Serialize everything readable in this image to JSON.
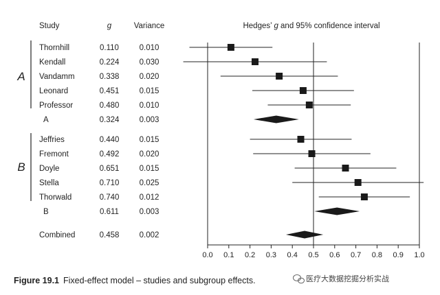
{
  "chart_data": {
    "type": "forest",
    "columns": {
      "study": "Study",
      "g": "g",
      "variance": "Variance"
    },
    "plot_title_prefix": "Hedges’ ",
    "plot_title_italic": "g",
    "plot_title_suffix": " and 95% confidence interval",
    "xlim": [
      0.0,
      1.0
    ],
    "x_ticks": [
      "0.0",
      "0.1",
      "0.2",
      "0.3",
      "0.4",
      "0.5",
      "0.6",
      "0.7",
      "0.8",
      "0.9",
      "1.0"
    ],
    "reference_lines": [
      0.0,
      0.5,
      1.0
    ],
    "groups": [
      {
        "label": "A",
        "studies": [
          {
            "name": "Thornhill",
            "g": "0.110",
            "variance": "0.010",
            "g_value": 0.11,
            "ci": [
              -0.086,
              0.306
            ]
          },
          {
            "name": "Kendall",
            "g": "0.224",
            "variance": "0.030",
            "g_value": 0.224,
            "ci": [
              -0.115,
              0.563
            ]
          },
          {
            "name": "Vandamm",
            "g": "0.338",
            "variance": "0.020",
            "g_value": 0.338,
            "ci": [
              0.061,
              0.615
            ]
          },
          {
            "name": "Leonard",
            "g": "0.451",
            "variance": "0.015",
            "g_value": 0.451,
            "ci": [
              0.211,
              0.691
            ]
          },
          {
            "name": "Professor",
            "g": "0.480",
            "variance": "0.010",
            "g_value": 0.48,
            "ci": [
              0.284,
              0.676
            ]
          }
        ],
        "summary": {
          "name": "A",
          "g": "0.324",
          "variance": "0.003",
          "g_value": 0.324,
          "ci": [
            0.217,
            0.431
          ]
        }
      },
      {
        "label": "B",
        "studies": [
          {
            "name": "Jeffries",
            "g": "0.440",
            "variance": "0.015",
            "g_value": 0.44,
            "ci": [
              0.2,
              0.68
            ]
          },
          {
            "name": "Fremont",
            "g": "0.492",
            "variance": "0.020",
            "g_value": 0.492,
            "ci": [
              0.215,
              0.769
            ]
          },
          {
            "name": "Doyle",
            "g": "0.651",
            "variance": "0.015",
            "g_value": 0.651,
            "ci": [
              0.411,
              0.891
            ]
          },
          {
            "name": "Stella",
            "g": "0.710",
            "variance": "0.025",
            "g_value": 0.71,
            "ci": [
              0.4,
              1.02
            ]
          },
          {
            "name": "Thorwald",
            "g": "0.740",
            "variance": "0.012",
            "g_value": 0.74,
            "ci": [
              0.525,
              0.955
            ]
          }
        ],
        "summary": {
          "name": "B",
          "g": "0.611",
          "variance": "0.003",
          "g_value": 0.611,
          "ci": [
            0.504,
            0.718
          ]
        }
      }
    ],
    "combined": {
      "name": "Combined",
      "g": "0.458",
      "variance": "0.002",
      "g_value": 0.458,
      "ci": [
        0.37,
        0.546
      ]
    }
  },
  "caption": {
    "label": "Figure 19.1",
    "text": "Fixed-effect model – studies and subgroup effects."
  },
  "watermark": {
    "text": "医疗大数据挖掘分析实战",
    "icon": "wechat-icon"
  },
  "colors": {
    "ink": "#222222",
    "marker": "#1a1a1a",
    "background": "#ffffff"
  }
}
